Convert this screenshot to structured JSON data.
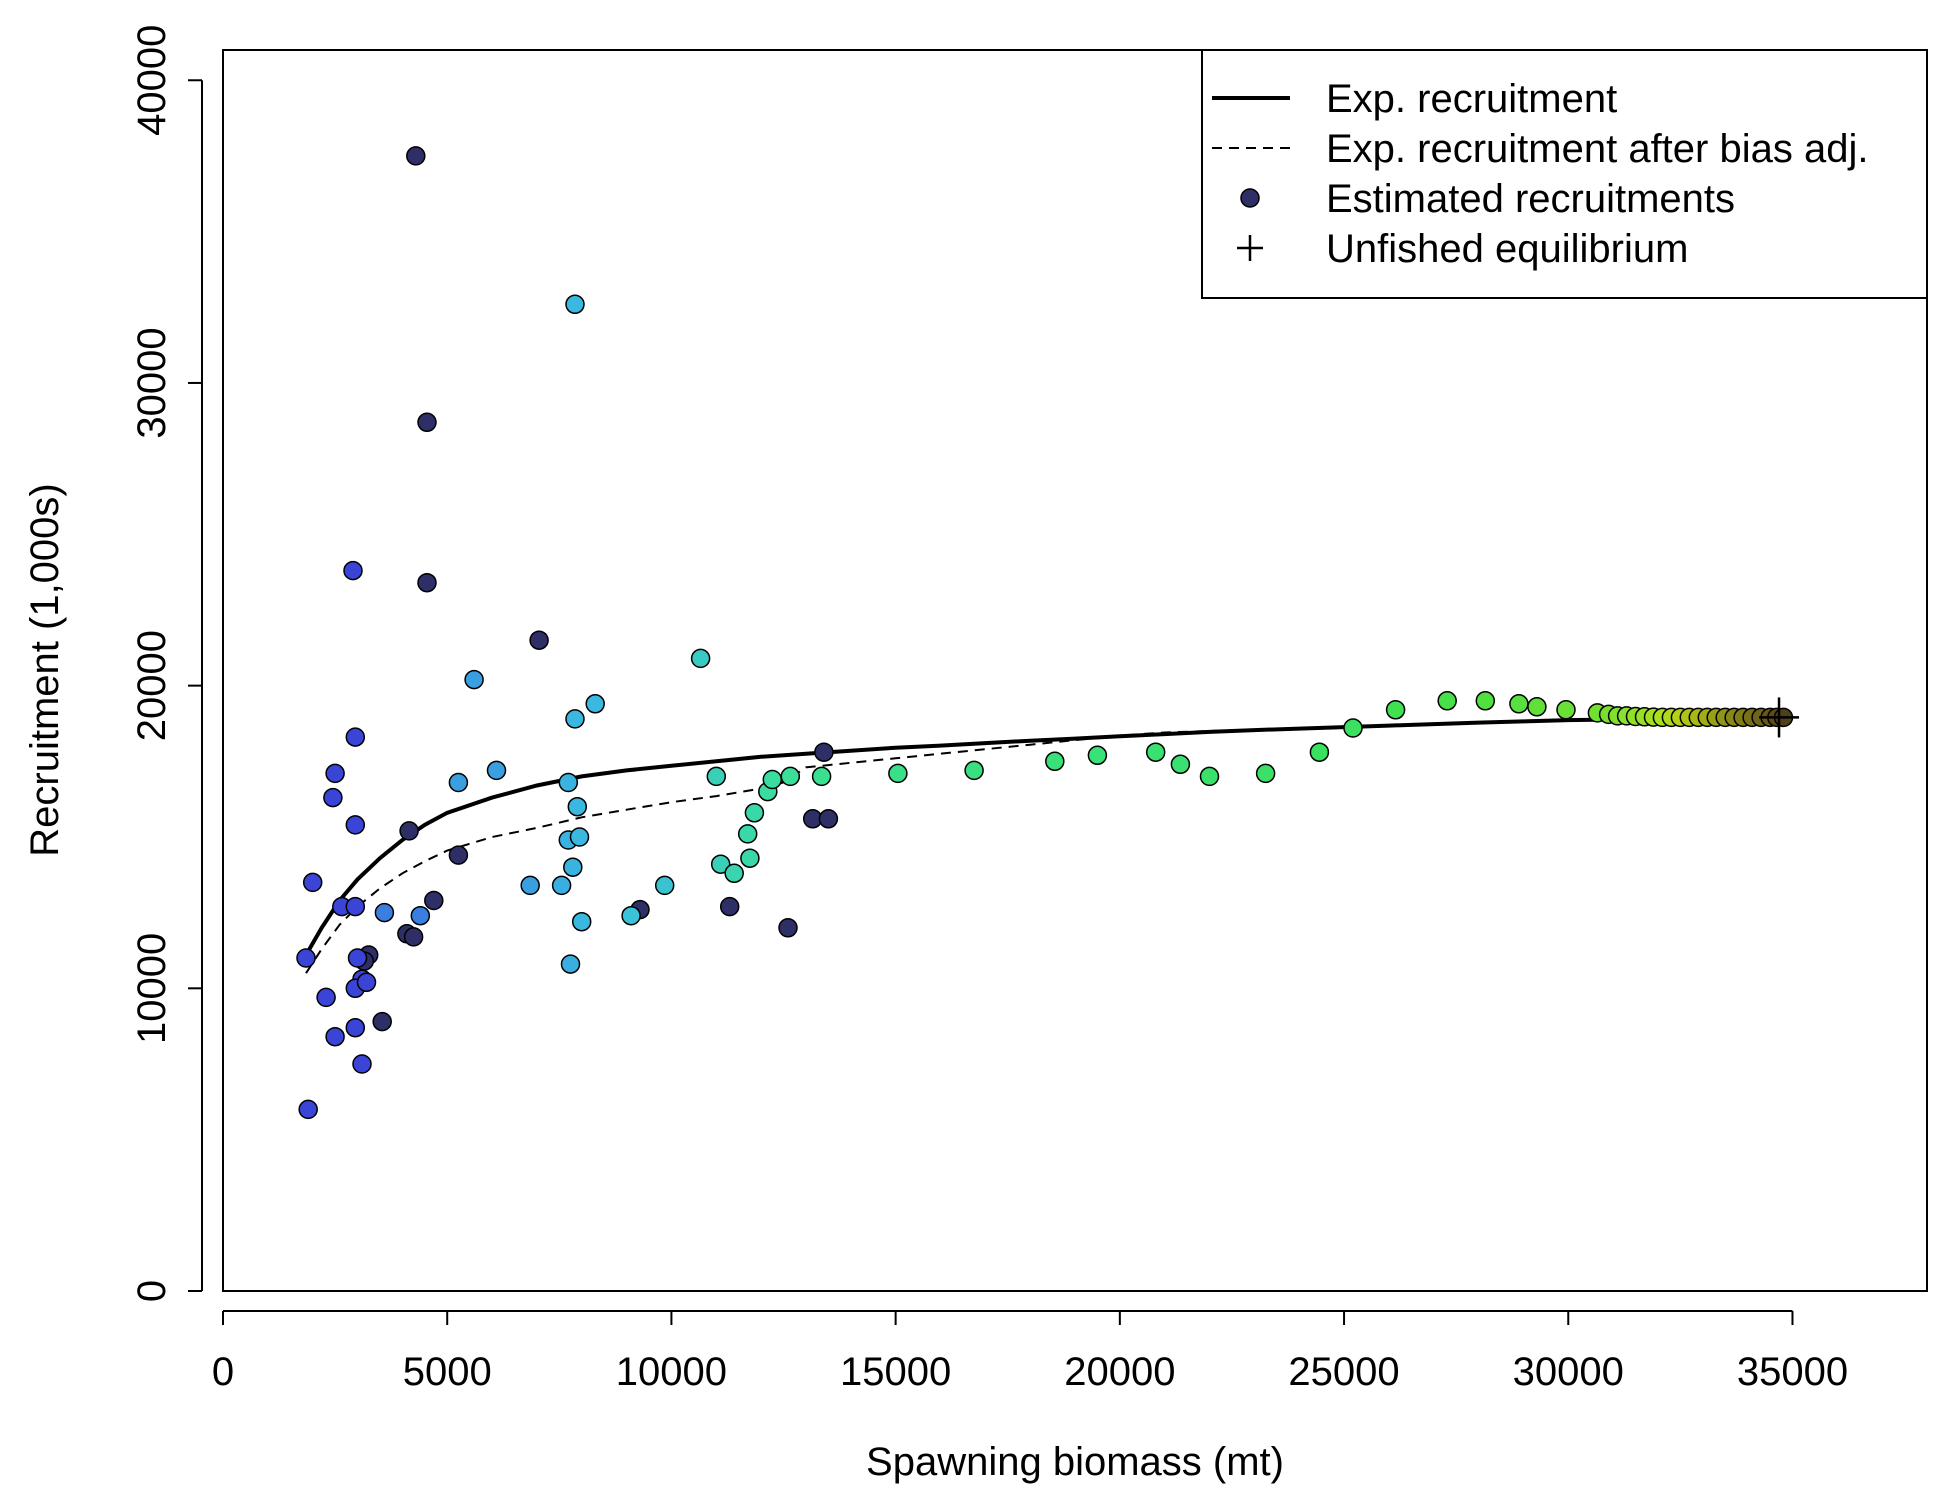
{
  "chart_data": {
    "type": "scatter",
    "xlabel": "Spawning biomass (mt)",
    "ylabel": "Recruitment (1,000s)",
    "xlim": [
      0,
      38000
    ],
    "ylim": [
      0,
      41000
    ],
    "x_ticks": [
      0,
      5000,
      10000,
      15000,
      20000,
      25000,
      30000,
      35000
    ],
    "x_tick_labels": [
      "0",
      "5000",
      "10000",
      "15000",
      "20000",
      "25000",
      "30000",
      "35000"
    ],
    "y_ticks": [
      0,
      10000,
      20000,
      30000,
      40000
    ],
    "y_tick_labels": [
      "0",
      "10000",
      "20000",
      "30000",
      "40000"
    ],
    "grid": false,
    "legend_position": "top-right",
    "legend": [
      {
        "label": "Exp. recruitment",
        "symbol": "solid-line"
      },
      {
        "label": "Exp. recruitment after bias adj.",
        "symbol": "dashed-line"
      },
      {
        "label": "Estimated recruitments",
        "symbol": "filled-circle",
        "color": "#2d2f66"
      },
      {
        "label": "Unfished equilibrium",
        "symbol": "plus"
      }
    ],
    "series": [
      {
        "name": "Exp. recruitment",
        "style": "solid",
        "x": [
          1850,
          2200,
          2600,
          3000,
          3500,
          4000,
          4500,
          5000,
          6000,
          7000,
          8000,
          9000,
          10000,
          11000,
          12000,
          13000,
          14000,
          15000,
          16000,
          17000,
          18000,
          19000,
          20000,
          21000,
          22000,
          23000,
          24000,
          25000,
          26000,
          27000,
          28000,
          29000,
          30000,
          31000,
          32000,
          33000,
          34000,
          34800
        ],
        "y": [
          11100,
          12000,
          12900,
          13600,
          14300,
          14900,
          15400,
          15800,
          16300,
          16700,
          17000,
          17200,
          17350,
          17500,
          17650,
          17750,
          17850,
          17950,
          18020,
          18100,
          18180,
          18250,
          18330,
          18400,
          18470,
          18530,
          18580,
          18630,
          18680,
          18730,
          18780,
          18820,
          18860,
          18880,
          18900,
          18920,
          18940,
          18950
        ]
      },
      {
        "name": "Exp. recruitment after bias adj.",
        "style": "dashed",
        "x": [
          1850,
          2200,
          2600,
          3000,
          3500,
          4000,
          4500,
          5000,
          6000,
          7000,
          8000,
          9000,
          10000,
          11000,
          12000,
          12500,
          13000,
          14000,
          15000,
          16000,
          17000,
          18000,
          19000,
          20000,
          21000,
          22000,
          23000,
          24000,
          25000,
          26000,
          27000,
          28000,
          29000,
          30000,
          31000,
          32000,
          33000,
          34000,
          34800
        ],
        "y": [
          10500,
          11300,
          12100,
          12700,
          13300,
          13800,
          14200,
          14550,
          15000,
          15300,
          15650,
          15900,
          16150,
          16350,
          16600,
          16800,
          17300,
          17450,
          17600,
          17750,
          17900,
          18050,
          18200,
          18350,
          18450,
          18500,
          18550,
          18600,
          18650,
          18700,
          18740,
          18780,
          18820,
          18860,
          18880,
          18900,
          18920,
          18940,
          18950
        ]
      },
      {
        "name": "Estimated recruitments",
        "style": "points",
        "points": [
          {
            "x": 4300,
            "y": 37500,
            "c": "#2d2f66"
          },
          {
            "x": 4550,
            "y": 28700,
            "c": "#2d2f66"
          },
          {
            "x": 4550,
            "y": 23400,
            "c": "#2d2f66"
          },
          {
            "x": 7050,
            "y": 21500,
            "c": "#2d2f66"
          },
          {
            "x": 4150,
            "y": 15200,
            "c": "#2d2f66"
          },
          {
            "x": 4700,
            "y": 12900,
            "c": "#2d2f66"
          },
          {
            "x": 4100,
            "y": 11800,
            "c": "#2d2f66"
          },
          {
            "x": 4250,
            "y": 11700,
            "c": "#2d2f66"
          },
          {
            "x": 3550,
            "y": 8900,
            "c": "#2d2f66"
          },
          {
            "x": 3250,
            "y": 11100,
            "c": "#2d2f66"
          },
          {
            "x": 3150,
            "y": 10900,
            "c": "#2d2f66"
          },
          {
            "x": 5250,
            "y": 14400,
            "c": "#2d2f66"
          },
          {
            "x": 9300,
            "y": 12600,
            "c": "#2d2f66"
          },
          {
            "x": 11300,
            "y": 12700,
            "c": "#2d2f66"
          },
          {
            "x": 12600,
            "y": 12000,
            "c": "#2d2f66"
          },
          {
            "x": 13150,
            "y": 15600,
            "c": "#2d2f66"
          },
          {
            "x": 13500,
            "y": 15600,
            "c": "#2d2f66"
          },
          {
            "x": 13400,
            "y": 17800,
            "c": "#2d2f66"
          },
          {
            "x": 2900,
            "y": 23800,
            "c": "#3a45d8"
          },
          {
            "x": 2950,
            "y": 18300,
            "c": "#3a45d8"
          },
          {
            "x": 2500,
            "y": 17100,
            "c": "#3a45d8"
          },
          {
            "x": 2450,
            "y": 16300,
            "c": "#3a45d8"
          },
          {
            "x": 2950,
            "y": 15400,
            "c": "#3a45d8"
          },
          {
            "x": 2000,
            "y": 13500,
            "c": "#3a45d8"
          },
          {
            "x": 2650,
            "y": 12700,
            "c": "#3a45d8"
          },
          {
            "x": 2950,
            "y": 12700,
            "c": "#3a45d8"
          },
          {
            "x": 1850,
            "y": 11000,
            "c": "#3a45d8"
          },
          {
            "x": 3000,
            "y": 11000,
            "c": "#3a45d8"
          },
          {
            "x": 3100,
            "y": 10300,
            "c": "#3a45d8"
          },
          {
            "x": 2950,
            "y": 10000,
            "c": "#3a45d8"
          },
          {
            "x": 3200,
            "y": 10200,
            "c": "#3a45d8"
          },
          {
            "x": 2300,
            "y": 9700,
            "c": "#3a45d8"
          },
          {
            "x": 2500,
            "y": 8400,
            "c": "#3a45d8"
          },
          {
            "x": 2950,
            "y": 8700,
            "c": "#3a45d8"
          },
          {
            "x": 3100,
            "y": 7500,
            "c": "#3a45d8"
          },
          {
            "x": 1900,
            "y": 6000,
            "c": "#3a45d8"
          },
          {
            "x": 3600,
            "y": 12500,
            "c": "#3a7fe0"
          },
          {
            "x": 4400,
            "y": 12400,
            "c": "#3a7fe0"
          },
          {
            "x": 5600,
            "y": 20200,
            "c": "#3a9fe0"
          },
          {
            "x": 5250,
            "y": 16800,
            "c": "#3a9fe0"
          },
          {
            "x": 6100,
            "y": 17200,
            "c": "#3a9fe0"
          },
          {
            "x": 6850,
            "y": 13400,
            "c": "#3a9fe0"
          },
          {
            "x": 7550,
            "y": 13400,
            "c": "#3aaee0"
          },
          {
            "x": 7750,
            "y": 10800,
            "c": "#3aaee0"
          },
          {
            "x": 7700,
            "y": 14900,
            "c": "#3ab3e0"
          },
          {
            "x": 7700,
            "y": 16800,
            "c": "#3ab3e0"
          },
          {
            "x": 7800,
            "y": 14000,
            "c": "#3ab3e0"
          },
          {
            "x": 7850,
            "y": 18900,
            "c": "#3ab8e0"
          },
          {
            "x": 7850,
            "y": 32600,
            "c": "#3ab8e0"
          },
          {
            "x": 7900,
            "y": 16000,
            "c": "#3ab8e0"
          },
          {
            "x": 7950,
            "y": 15000,
            "c": "#3ab8e0"
          },
          {
            "x": 8000,
            "y": 12200,
            "c": "#3ab8e0"
          },
          {
            "x": 8300,
            "y": 19400,
            "c": "#3ab8e0"
          },
          {
            "x": 9100,
            "y": 12400,
            "c": "#3ac2d8"
          },
          {
            "x": 9850,
            "y": 13400,
            "c": "#3ac2d0"
          },
          {
            "x": 10650,
            "y": 20900,
            "c": "#3acac4"
          },
          {
            "x": 11000,
            "y": 17000,
            "c": "#3ad0b8"
          },
          {
            "x": 11100,
            "y": 14100,
            "c": "#3ad0b8"
          },
          {
            "x": 11400,
            "y": 13800,
            "c": "#3ad4b0"
          },
          {
            "x": 11700,
            "y": 15100,
            "c": "#3ad8a8"
          },
          {
            "x": 11750,
            "y": 14300,
            "c": "#3ad8a8"
          },
          {
            "x": 11850,
            "y": 15800,
            "c": "#3ad8a8"
          },
          {
            "x": 12150,
            "y": 16500,
            "c": "#3adca0"
          },
          {
            "x": 12250,
            "y": 16900,
            "c": "#3adca0"
          },
          {
            "x": 12650,
            "y": 17000,
            "c": "#3ade98"
          },
          {
            "x": 13350,
            "y": 17000,
            "c": "#3ae090"
          },
          {
            "x": 15050,
            "y": 17100,
            "c": "#3ae088"
          },
          {
            "x": 16750,
            "y": 17200,
            "c": "#3ae080"
          },
          {
            "x": 18550,
            "y": 17500,
            "c": "#3ae078"
          },
          {
            "x": 19500,
            "y": 17700,
            "c": "#3ae078"
          },
          {
            "x": 20800,
            "y": 17800,
            "c": "#3ae070"
          },
          {
            "x": 21350,
            "y": 17400,
            "c": "#3ae070"
          },
          {
            "x": 22000,
            "y": 17000,
            "c": "#3ae068"
          },
          {
            "x": 23250,
            "y": 17100,
            "c": "#3ae068"
          },
          {
            "x": 24450,
            "y": 17800,
            "c": "#3ae060"
          },
          {
            "x": 25200,
            "y": 18600,
            "c": "#3ae060"
          },
          {
            "x": 26150,
            "y": 19200,
            "c": "#40e050"
          },
          {
            "x": 27300,
            "y": 19500,
            "c": "#48e048"
          },
          {
            "x": 28150,
            "y": 19500,
            "c": "#50e040"
          },
          {
            "x": 28900,
            "y": 19400,
            "c": "#58e040"
          },
          {
            "x": 29300,
            "y": 19300,
            "c": "#60e038"
          },
          {
            "x": 29950,
            "y": 19200,
            "c": "#68e038"
          },
          {
            "x": 30650,
            "y": 19100,
            "c": "#72e030"
          },
          {
            "x": 30900,
            "y": 19050,
            "c": "#78e030"
          },
          {
            "x": 31100,
            "y": 19000,
            "c": "#80e030"
          },
          {
            "x": 31300,
            "y": 19000,
            "c": "#88e030"
          },
          {
            "x": 31500,
            "y": 18980,
            "c": "#90e028"
          },
          {
            "x": 31700,
            "y": 18970,
            "c": "#98e028"
          },
          {
            "x": 31900,
            "y": 18960,
            "c": "#a0e020"
          },
          {
            "x": 32100,
            "y": 18950,
            "c": "#a8e020"
          },
          {
            "x": 32300,
            "y": 18950,
            "c": "#b0d820"
          },
          {
            "x": 32500,
            "y": 18950,
            "c": "#b4d018"
          },
          {
            "x": 32700,
            "y": 18950,
            "c": "#b0c418"
          },
          {
            "x": 32900,
            "y": 18950,
            "c": "#a8b818"
          },
          {
            "x": 33100,
            "y": 18950,
            "c": "#a0ac18"
          },
          {
            "x": 33300,
            "y": 18950,
            "c": "#98a018"
          },
          {
            "x": 33500,
            "y": 18950,
            "c": "#909418"
          },
          {
            "x": 33700,
            "y": 18950,
            "c": "#888818"
          },
          {
            "x": 33900,
            "y": 18950,
            "c": "#807c18"
          },
          {
            "x": 34100,
            "y": 18950,
            "c": "#787018"
          },
          {
            "x": 34300,
            "y": 18950,
            "c": "#706418"
          },
          {
            "x": 34500,
            "y": 18950,
            "c": "#685818"
          },
          {
            "x": 34650,
            "y": 18950,
            "c": "#5c4c18"
          },
          {
            "x": 34800,
            "y": 18950,
            "c": "#504018"
          }
        ]
      },
      {
        "name": "Unfished equilibrium",
        "style": "plus",
        "x": [
          34700
        ],
        "y": [
          18950
        ]
      }
    ]
  }
}
